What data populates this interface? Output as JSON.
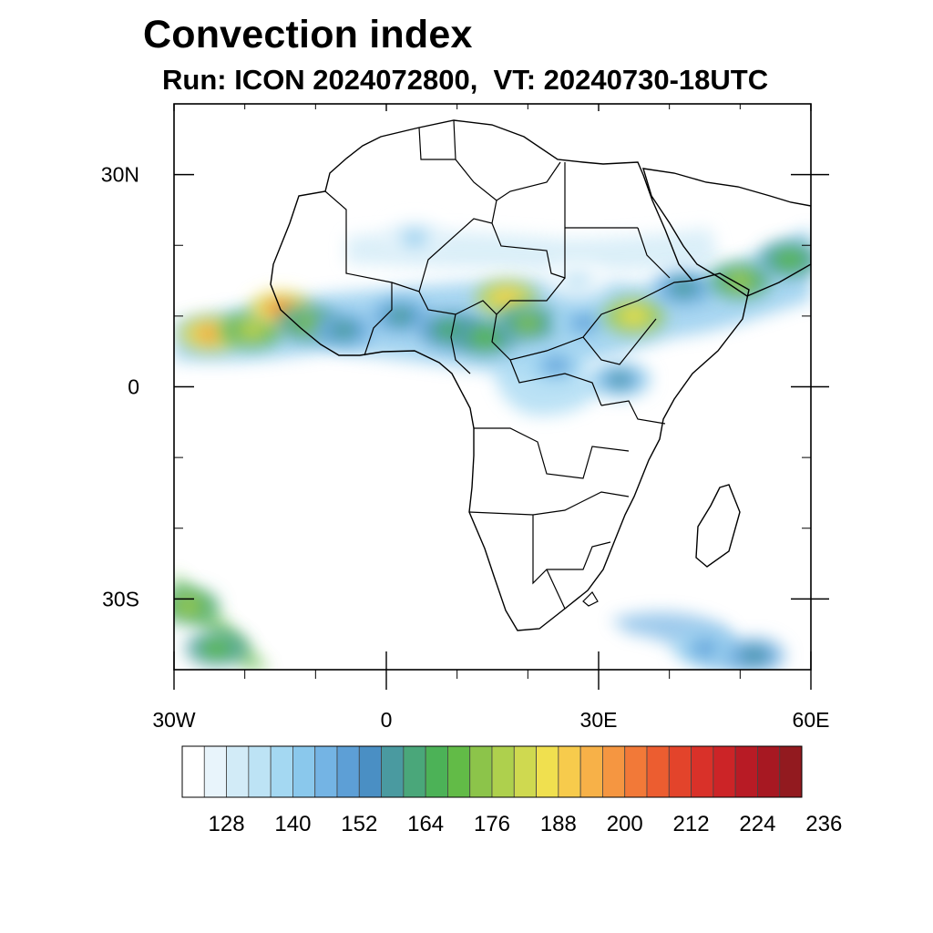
{
  "title": "Convection index",
  "subtitle": "Run: ICON 2024072800,  VT: 20240730-18UTC",
  "map": {
    "lon_range": [
      -30,
      60
    ],
    "lat_range": [
      -40,
      40
    ],
    "lat_ticks": [
      {
        "value": 30,
        "label": "30N"
      },
      {
        "value": 0,
        "label": "0"
      },
      {
        "value": -30,
        "label": "30S"
      }
    ],
    "lon_ticks": [
      {
        "value": -30,
        "label": "30W"
      },
      {
        "value": 0,
        "label": "0"
      },
      {
        "value": 30,
        "label": "30E"
      },
      {
        "value": 60,
        "label": "60E"
      }
    ]
  },
  "colorbar": {
    "colors": [
      "#ffffff",
      "#e8f4fb",
      "#d2ebf7",
      "#bde3f5",
      "#a4d8f2",
      "#8ac8ec",
      "#74b4e4",
      "#5d9fd6",
      "#4a8fc4",
      "#4a9aa0",
      "#4aa77a",
      "#4cb257",
      "#62bb47",
      "#8cc44a",
      "#aed04d",
      "#cfd950",
      "#f0e04f",
      "#f7cb4c",
      "#f7b148",
      "#f59641",
      "#f27938",
      "#ec5d30",
      "#e3442b",
      "#d93129",
      "#cc2427",
      "#b81b25",
      "#a71822",
      "#921a1f"
    ],
    "labels": [
      "128",
      "140",
      "152",
      "164",
      "176",
      "188",
      "200",
      "212",
      "224",
      "236"
    ],
    "label_start_index": 2,
    "label_step": 3
  },
  "field": {
    "blobs": [
      {
        "lon": -25,
        "lat": 7.5,
        "value": 196
      },
      {
        "lon": -19,
        "lat": 8,
        "value": 180
      },
      {
        "lon": -15,
        "lat": 11,
        "value": 200
      },
      {
        "lon": -11,
        "lat": 9,
        "value": 172
      },
      {
        "lon": -6,
        "lat": 8,
        "value": 160
      },
      {
        "lon": 2,
        "lat": 10,
        "value": 160
      },
      {
        "lon": 9,
        "lat": 8,
        "value": 166
      },
      {
        "lon": 14,
        "lat": 7,
        "value": 170
      },
      {
        "lon": 17,
        "lat": 12.5,
        "value": 190
      },
      {
        "lon": 20,
        "lat": 9,
        "value": 172
      },
      {
        "lon": 24,
        "lat": 3,
        "value": 150
      },
      {
        "lon": 28,
        "lat": 9,
        "value": 150
      },
      {
        "lon": 35,
        "lat": 10,
        "value": 186
      },
      {
        "lon": 33,
        "lat": 1,
        "value": 156
      },
      {
        "lon": 42,
        "lat": 14,
        "value": 160
      },
      {
        "lon": 50,
        "lat": 15,
        "value": 176
      },
      {
        "lon": 57,
        "lat": 18,
        "value": 170
      },
      {
        "lon": 4,
        "lat": 21,
        "value": 140
      },
      {
        "lon": 27,
        "lat": 15,
        "value": 135
      },
      {
        "lon": -28,
        "lat": -31,
        "value": 176
      },
      {
        "lon": -24,
        "lat": -37,
        "value": 170
      },
      {
        "lon": 45,
        "lat": -37,
        "value": 150
      },
      {
        "lon": 52,
        "lat": -38,
        "value": 158
      }
    ]
  }
}
